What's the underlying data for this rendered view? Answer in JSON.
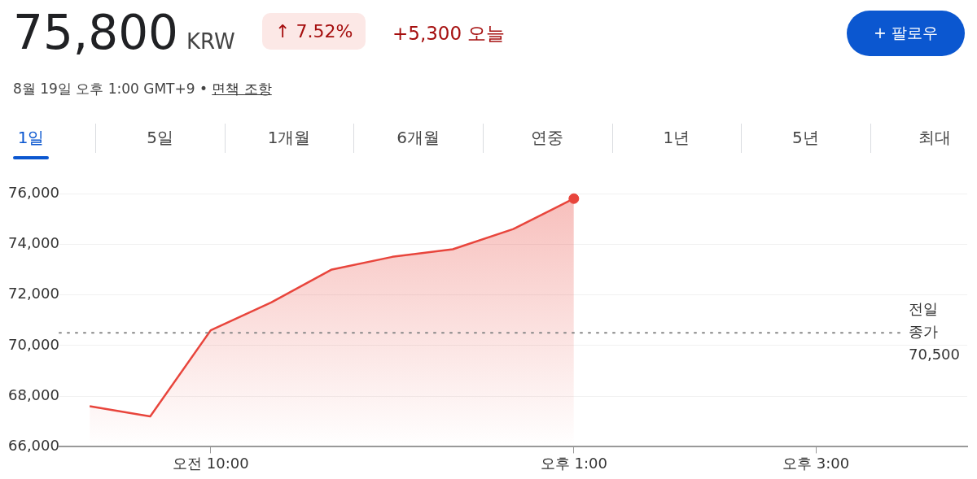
{
  "chart_data": {
    "type": "area",
    "title": "75,800 KRW",
    "subtitle": "8월 19일 오후 1:00 GMT+9 • 면책 조항",
    "annotations": [
      "↑ 7.52%",
      "+5,300 오늘",
      "+ 팔로우",
      "1일",
      "5일",
      "1개월",
      "6개월",
      "연중",
      "1년",
      "5년",
      "최대"
    ],
    "categories": [
      null,
      null,
      "오전 10:00",
      null,
      null,
      null,
      null,
      null,
      "오후 1:00",
      null,
      null,
      null,
      "오후 3:00",
      null,
      null
    ],
    "series": [
      {
        "color": "#e8453c",
        "values": [
          67600,
          67200,
          70600,
          71700,
          73000,
          73500,
          73800,
          74600,
          75800,
          null,
          null,
          null,
          null,
          null,
          null
        ]
      },
      {
        "type": "scatter",
        "color": "#e8453c",
        "marker": "circle",
        "values": [
          null,
          null,
          null,
          null,
          null,
          null,
          null,
          null,
          75800,
          null,
          null,
          null,
          null,
          null,
          null
        ]
      }
    ],
    "ylim": [
      66000,
      76000
    ],
    "yticks": [
      {
        "value": 66000,
        "label": "66,000"
      },
      {
        "value": 68000,
        "label": "68,000"
      },
      {
        "value": 70000,
        "label": "70,000"
      },
      {
        "value": 72000,
        "label": "72,000"
      },
      {
        "value": 74000,
        "label": "74,000"
      },
      {
        "value": 76000,
        "label": "76,000"
      }
    ],
    "grid": "y",
    "legend": false,
    "ref_lines": [
      {
        "axis": "y",
        "value": 70500,
        "label": "전일 종가 70,500",
        "color": "#888888",
        "line_style": "dotted"
      }
    ]
  }
}
